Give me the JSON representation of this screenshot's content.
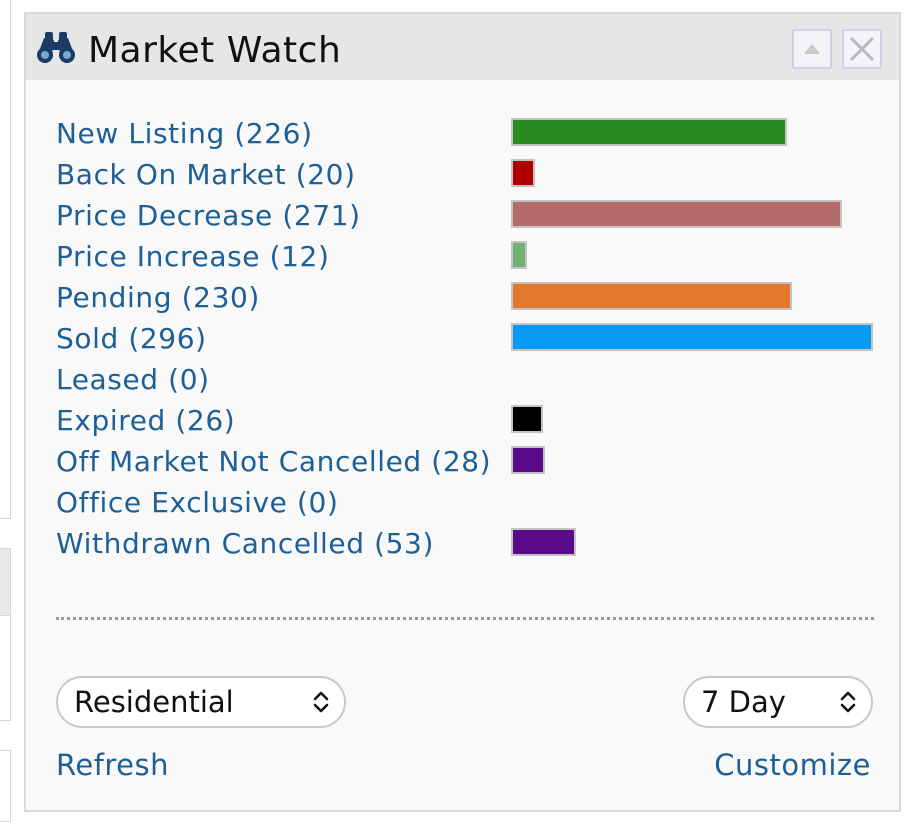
{
  "widget": {
    "title": "Market Watch",
    "icon": "binoculars-icon",
    "collapse_icon": "triangle-up-icon",
    "close_icon": "close-icon"
  },
  "listings": [
    {
      "label": "New Listing (226)",
      "count": 226,
      "color": "#2a8b22"
    },
    {
      "label": "Back On Market (20)",
      "count": 20,
      "color": "#b00000"
    },
    {
      "label": "Price Decrease (271)",
      "count": 271,
      "color": "#b56a6a"
    },
    {
      "label": "Price Increase (12)",
      "count": 12,
      "color": "#74b074"
    },
    {
      "label": "Pending (230)",
      "count": 230,
      "color": "#e3792c"
    },
    {
      "label": "Sold (296)",
      "count": 296,
      "color": "#0a99f0"
    },
    {
      "label": "Leased (0)",
      "count": 0,
      "color": "#888888"
    },
    {
      "label": "Expired (26)",
      "count": 26,
      "color": "#000000"
    },
    {
      "label": "Off Market Not Cancelled (28)",
      "count": 28,
      "color": "#5a0b8a"
    },
    {
      "label": "Office Exclusive (0)",
      "count": 0,
      "color": "#888888"
    },
    {
      "label": "Withdrawn Cancelled (53)",
      "count": 53,
      "color": "#5a0b8a"
    }
  ],
  "controls": {
    "property_type": "Residential",
    "period": "7 Day",
    "refresh_label": "Refresh",
    "customize_label": "Customize"
  }
}
